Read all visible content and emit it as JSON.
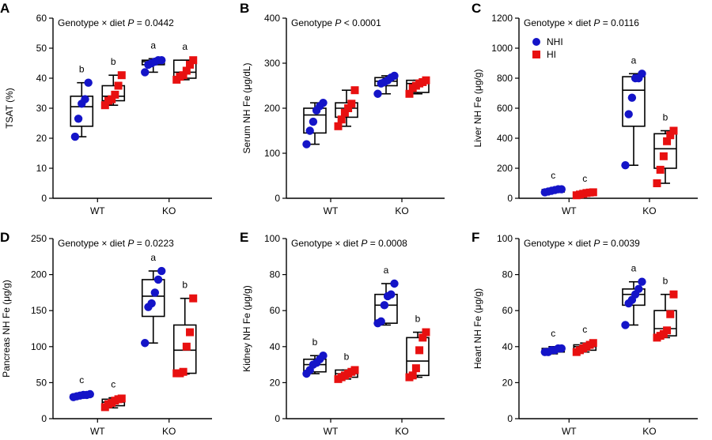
{
  "colors": {
    "NHI": "#1414c8",
    "HI": "#e81010",
    "axis": "#000000"
  },
  "legend": {
    "NHI": "NHI",
    "HI": "HI",
    "panel": "C"
  },
  "chart_data": [
    {
      "panel": "A",
      "type": "box",
      "annotation_prefix": "Genotype × diet",
      "p_symbol": "P",
      "p_text": "= 0.0442",
      "ylabel": "TSAT (%)",
      "ylim": [
        0,
        60
      ],
      "yticks": [
        0,
        10,
        20,
        30,
        40,
        50,
        60
      ],
      "categories": [
        "WT",
        "KO"
      ],
      "groups": [
        {
          "series": "NHI",
          "category": "WT",
          "points": [
            20.5,
            26.5,
            31.5,
            33,
            38.5
          ],
          "box": [
            24,
            30.5,
            34
          ],
          "whiskers": [
            20.5,
            38.5
          ],
          "letter": "b"
        },
        {
          "series": "HI",
          "category": "WT",
          "points": [
            31,
            32.5,
            33,
            34.5,
            37.5,
            41
          ],
          "box": [
            32.5,
            34,
            37.5
          ],
          "whiskers": [
            31,
            41
          ],
          "letter": "b"
        },
        {
          "series": "NHI",
          "category": "KO",
          "points": [
            42,
            44.5,
            45,
            45.5,
            46,
            46
          ],
          "box": [
            44.5,
            45.5,
            46
          ],
          "whiskers": [
            42,
            46.5
          ],
          "letter": "a"
        },
        {
          "series": "HI",
          "category": "KO",
          "points": [
            39.5,
            40.5,
            41,
            42.5,
            44.5,
            46
          ],
          "box": [
            40,
            42,
            46
          ],
          "whiskers": [
            39.5,
            46
          ],
          "letter": "a"
        }
      ]
    },
    {
      "panel": "B",
      "type": "box",
      "annotation_prefix": "Genotype",
      "p_symbol": "P",
      "p_text": "< 0.0001",
      "ylabel": "Serum NH Fe (μg/dL)",
      "ylim": [
        0,
        400
      ],
      "yticks": [
        0,
        100,
        200,
        300,
        400
      ],
      "categories": [
        "WT",
        "KO"
      ],
      "groups": [
        {
          "series": "NHI",
          "category": "WT",
          "points": [
            120,
            150,
            170,
            195,
            205,
            212
          ],
          "box": [
            145,
            185,
            200
          ],
          "whiskers": [
            120,
            212
          ],
          "letter": ""
        },
        {
          "series": "HI",
          "category": "WT",
          "points": [
            160,
            175,
            190,
            200,
            210,
            240
          ],
          "box": [
            180,
            200,
            212
          ],
          "whiskers": [
            160,
            240
          ],
          "letter": ""
        },
        {
          "series": "NHI",
          "category": "KO",
          "points": [
            232,
            255,
            258,
            262,
            268,
            272
          ],
          "box": [
            250,
            260,
            268
          ],
          "whiskers": [
            232,
            272
          ],
          "letter": ""
        },
        {
          "series": "HI",
          "category": "KO",
          "points": [
            232,
            245,
            250,
            255,
            258,
            262
          ],
          "box": [
            235,
            255,
            262
          ],
          "whiskers": [
            232,
            262
          ],
          "letter": ""
        }
      ]
    },
    {
      "panel": "C",
      "type": "box",
      "annotation_prefix": "Genotype × diet",
      "p_symbol": "P",
      "p_text": "= 0.0116",
      "ylabel": "Liver NH Fe (μg/g)",
      "ylim": [
        0,
        1200
      ],
      "yticks": [
        0,
        200,
        400,
        600,
        800,
        1000,
        1200
      ],
      "categories": [
        "WT",
        "KO"
      ],
      "groups": [
        {
          "series": "NHI",
          "category": "WT",
          "points": [
            40,
            45,
            50,
            55,
            60,
            60
          ],
          "box": [
            42,
            50,
            58
          ],
          "whiskers": [
            38,
            62
          ],
          "letter": "c"
        },
        {
          "series": "HI",
          "category": "WT",
          "points": [
            20,
            25,
            30,
            35,
            38,
            40
          ],
          "box": [
            22,
            30,
            38
          ],
          "whiskers": [
            18,
            42
          ],
          "letter": "c"
        },
        {
          "series": "NHI",
          "category": "KO",
          "points": [
            220,
            560,
            670,
            800,
            800,
            830
          ],
          "box": [
            480,
            720,
            810
          ],
          "whiskers": [
            220,
            830
          ],
          "letter": "a"
        },
        {
          "series": "HI",
          "category": "KO",
          "points": [
            100,
            190,
            280,
            380,
            420,
            450
          ],
          "box": [
            200,
            330,
            430
          ],
          "whiskers": [
            100,
            450
          ],
          "letter": "b"
        }
      ]
    },
    {
      "panel": "D",
      "type": "box",
      "annotation_prefix": "Genotype × diet",
      "p_symbol": "P",
      "p_text": "= 0.0223",
      "ylabel": "Pancreas NH Fe (μg/g)",
      "ylim": [
        0,
        250
      ],
      "yticks": [
        0,
        50,
        100,
        150,
        200,
        250
      ],
      "categories": [
        "WT",
        "KO"
      ],
      "groups": [
        {
          "series": "NHI",
          "category": "WT",
          "points": [
            30,
            31,
            32,
            33,
            33,
            34
          ],
          "box": [
            31,
            32,
            33
          ],
          "whiskers": [
            29,
            35
          ],
          "letter": "c"
        },
        {
          "series": "HI",
          "category": "WT",
          "points": [
            16,
            20,
            22,
            25,
            27,
            28
          ],
          "box": [
            18,
            23,
            27
          ],
          "whiskers": [
            15,
            29
          ],
          "letter": "c"
        },
        {
          "series": "NHI",
          "category": "KO",
          "points": [
            105,
            155,
            160,
            175,
            193,
            205
          ],
          "box": [
            142,
            170,
            193
          ],
          "whiskers": [
            105,
            205
          ],
          "letter": "a"
        },
        {
          "series": "HI",
          "category": "KO",
          "points": [
            63,
            63,
            65,
            100,
            120,
            167
          ],
          "box": [
            63,
            95,
            130
          ],
          "whiskers": [
            62,
            167
          ],
          "letter": "b"
        }
      ]
    },
    {
      "panel": "E",
      "type": "box",
      "annotation_prefix": "Genotype × diet",
      "p_symbol": "P",
      "p_text": "= 0.0008",
      "ylabel": "Kidney NH Fe (μg/g)",
      "ylim": [
        0,
        100
      ],
      "yticks": [
        0,
        20,
        40,
        60,
        80,
        100
      ],
      "categories": [
        "WT",
        "KO"
      ],
      "groups": [
        {
          "series": "NHI",
          "category": "WT",
          "points": [
            25,
            27,
            30,
            31,
            33,
            35
          ],
          "box": [
            26,
            30,
            33
          ],
          "whiskers": [
            25,
            35
          ],
          "letter": "b"
        },
        {
          "series": "HI",
          "category": "WT",
          "points": [
            22,
            23,
            24,
            25,
            26,
            27
          ],
          "box": [
            23,
            25,
            27
          ],
          "whiskers": [
            22,
            27
          ],
          "letter": "b"
        },
        {
          "series": "NHI",
          "category": "KO",
          "points": [
            53,
            54,
            63,
            68,
            69,
            75
          ],
          "box": [
            53,
            63,
            69
          ],
          "whiskers": [
            52,
            75
          ],
          "letter": "a"
        },
        {
          "series": "HI",
          "category": "KO",
          "points": [
            23,
            24,
            28,
            38,
            45,
            48
          ],
          "box": [
            24,
            32,
            45
          ],
          "whiskers": [
            23,
            48
          ],
          "letter": "b"
        }
      ]
    },
    {
      "panel": "F",
      "type": "box",
      "annotation_prefix": "Genotype × diet",
      "p_symbol": "P",
      "p_text": "= 0.0039",
      "ylabel": "Heart NH Fe (μg/g)",
      "ylim": [
        0,
        100
      ],
      "yticks": [
        0,
        20,
        40,
        60,
        80,
        100
      ],
      "categories": [
        "WT",
        "KO"
      ],
      "groups": [
        {
          "series": "NHI",
          "category": "WT",
          "points": [
            37,
            37,
            38,
            38,
            39,
            39
          ],
          "box": [
            37,
            38,
            39
          ],
          "whiskers": [
            36,
            40
          ],
          "letter": "c"
        },
        {
          "series": "HI",
          "category": "WT",
          "points": [
            37,
            38,
            39,
            40,
            41,
            42
          ],
          "box": [
            38,
            40,
            41
          ],
          "whiskers": [
            37,
            42
          ],
          "letter": "c"
        },
        {
          "series": "NHI",
          "category": "KO",
          "points": [
            52,
            64,
            66,
            69,
            72,
            76
          ],
          "box": [
            63,
            69,
            72
          ],
          "whiskers": [
            52,
            76
          ],
          "letter": "a"
        },
        {
          "series": "HI",
          "category": "KO",
          "points": [
            45,
            46,
            47,
            49,
            58,
            69
          ],
          "box": [
            46,
            50,
            60
          ],
          "whiskers": [
            45,
            69
          ],
          "letter": "b"
        }
      ]
    }
  ]
}
